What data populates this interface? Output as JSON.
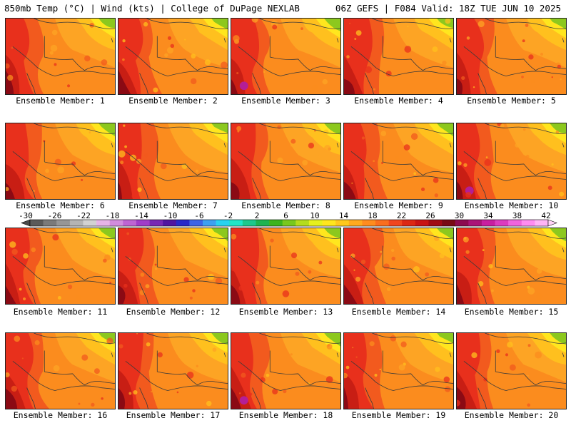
{
  "header": {
    "left_title": "850mb Temp (°C) | Wind (kts) | College of DuPage NEXLAB",
    "right_title": "06Z GEFS | F084 Valid: 18Z TUE JUN 10 2025"
  },
  "colors": {
    "very_hot": "#8b0a14",
    "hot": "#c81e14",
    "red": "#e8301c",
    "orange_red": "#f25a1e",
    "orange": "#fb8c1e",
    "light_orange": "#fda424",
    "gold": "#ffc01e",
    "yellow": "#ffe61e",
    "yellow_green": "#c8dc1e",
    "green": "#8cc81e",
    "magenta": "#b41e96"
  },
  "panels": [
    {
      "label": "Ensemble Member: 1",
      "member": 1
    },
    {
      "label": "Ensemble Member: 2",
      "member": 2
    },
    {
      "label": "Ensemble Member: 3",
      "member": 3
    },
    {
      "label": "Ensemble Member: 4",
      "member": 4
    },
    {
      "label": "Ensemble Member: 5",
      "member": 5
    },
    {
      "label": "Ensemble Member: 6",
      "member": 6
    },
    {
      "label": "Ensemble Member: 7",
      "member": 7
    },
    {
      "label": "Ensemble Member: 8",
      "member": 8
    },
    {
      "label": "Ensemble Member: 9",
      "member": 9
    },
    {
      "label": "Ensemble Member: 10",
      "member": 10
    },
    {
      "label": "Ensemble Member: 11",
      "member": 11
    },
    {
      "label": "Ensemble Member: 12",
      "member": 12
    },
    {
      "label": "Ensemble Member: 13",
      "member": 13
    },
    {
      "label": "Ensemble Member: 14",
      "member": 14
    },
    {
      "label": "Ensemble Member: 15",
      "member": 15
    },
    {
      "label": "Ensemble Member: 16",
      "member": 16
    },
    {
      "label": "Ensemble Member: 17",
      "member": 17
    },
    {
      "label": "Ensemble Member: 18",
      "member": 18
    },
    {
      "label": "Ensemble Member: 19",
      "member": 19
    },
    {
      "label": "Ensemble Member: 20",
      "member": 20
    }
  ],
  "colorbar": {
    "labels": [
      "-30",
      "-26",
      "-22",
      "-18",
      "-14",
      "-10",
      "-6",
      "-2",
      "2",
      "6",
      "10",
      "14",
      "18",
      "22",
      "26",
      "30",
      "34",
      "38",
      "42"
    ],
    "segment_colors": [
      "#5a5a5a",
      "#7a7a7a",
      "#969696",
      "#b4b4b4",
      "#d2d2d2",
      "#e6b4e6",
      "#d28cdc",
      "#be64d2",
      "#a03cc8",
      "#7828b4",
      "#5014a0",
      "#2828c8",
      "#3c64e6",
      "#3ca0f0",
      "#28d2f0",
      "#1ee6c8",
      "#1ec88c",
      "#1eb450",
      "#3cb41e",
      "#78c81e",
      "#b4dc1e",
      "#e6f01e",
      "#ffe61e",
      "#ffc81e",
      "#ffaa1e",
      "#ff8c1e",
      "#fa6e1e",
      "#f0461e",
      "#dc2814",
      "#c81414",
      "#a00a14",
      "#780a14",
      "#8c0a50",
      "#aa1478",
      "#c81ea0",
      "#dc3cbe",
      "#f064dc",
      "#ff8cf0",
      "#ffb4f5"
    ]
  }
}
